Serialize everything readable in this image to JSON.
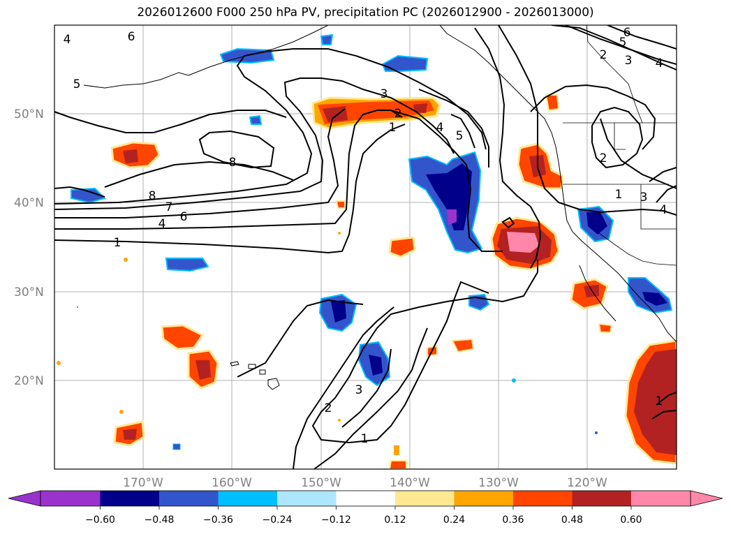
{
  "title": "2026012600 F000 250 hPa PV, precipitation PC (2026012900 - 2026013000)",
  "map": {
    "lat_labels": [
      "50°N",
      "40°N",
      "30°N",
      "20°N"
    ],
    "lon_labels": [
      "170°W",
      "160°W",
      "150°W",
      "140°W",
      "130°W",
      "120°W"
    ],
    "contour_labels": [
      "6",
      "5",
      "8",
      "8",
      "7",
      "6",
      "4",
      "1",
      "3",
      "2",
      "1",
      "4",
      "5",
      "6",
      "5",
      "2",
      "3",
      "4",
      "2",
      "1",
      "3",
      "4",
      "3",
      "2",
      "1",
      "4",
      "1"
    ]
  },
  "colorbar": {
    "ticks": [
      "−0.60",
      "−0.48",
      "−0.36",
      "−0.24",
      "−0.12",
      "0.12",
      "0.24",
      "0.36",
      "0.48",
      "0.60"
    ],
    "colors": [
      "#9933cc",
      "#00008b",
      "#3355cc",
      "#00bfff",
      "#ade6ff",
      "#ffffff",
      "#ffe890",
      "#ffa500",
      "#ff4500",
      "#b22222",
      "#ff88aa"
    ]
  }
}
